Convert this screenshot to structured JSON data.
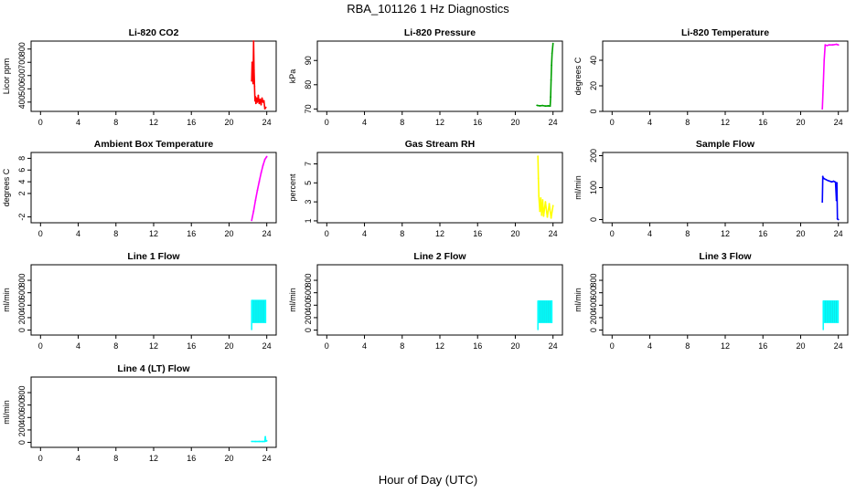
{
  "figure": {
    "title": "RBA_101126  1 Hz Diagnostics",
    "xlabel": "Hour of Day (UTC)"
  },
  "chart_data": [
    {
      "type": "line",
      "title": "Li-820 CO2",
      "ylabel": "Licor ppm",
      "color": "#ff0000",
      "xlim": [
        -1,
        25
      ],
      "ylim": [
        330,
        860
      ],
      "xticks": [
        0,
        4,
        8,
        12,
        16,
        20,
        24
      ],
      "yticks": [
        400,
        500,
        600,
        700,
        800
      ],
      "x": [
        22.4,
        22.45,
        22.5,
        22.55,
        22.6,
        22.65,
        22.7,
        22.75,
        22.8,
        22.85,
        22.9,
        23.0,
        23.1,
        23.2,
        23.3,
        23.4,
        23.5,
        23.6,
        23.7,
        23.8,
        23.9
      ],
      "y": [
        560,
        700,
        620,
        540,
        860,
        640,
        520,
        410,
        440,
        390,
        430,
        400,
        450,
        390,
        420,
        380,
        430,
        400,
        410,
        350,
        360
      ]
    },
    {
      "type": "line",
      "title": "Li-820 Pressure",
      "ylabel": "kPa",
      "color": "#00a000",
      "xlim": [
        -1,
        25
      ],
      "ylim": [
        69,
        98
      ],
      "xticks": [
        0,
        4,
        8,
        12,
        16,
        20,
        24
      ],
      "yticks": [
        70,
        80,
        90
      ],
      "x": [
        22.3,
        22.6,
        22.9,
        23.2,
        23.5,
        23.7,
        23.75,
        23.8,
        23.85,
        23.9,
        24.0
      ],
      "y": [
        71.5,
        71.3,
        71.4,
        71.2,
        71.3,
        71.2,
        75,
        82,
        88,
        93,
        97
      ]
    },
    {
      "type": "line",
      "title": "Li-820 Temperature",
      "ylabel": "degrees C",
      "color": "#ff00ff",
      "xlim": [
        -1,
        25
      ],
      "ylim": [
        0,
        55
      ],
      "xticks": [
        0,
        4,
        8,
        12,
        16,
        20,
        24
      ],
      "yticks": [
        0,
        20,
        40
      ],
      "x": [
        22.3,
        22.4,
        22.5,
        22.6,
        22.8,
        23.0,
        23.4,
        23.8,
        24.0
      ],
      "y": [
        2,
        20,
        40,
        52,
        51.5,
        52,
        52,
        52.5,
        52
      ]
    },
    {
      "type": "line",
      "title": "Ambient Box Temperature",
      "ylabel": "degrees C",
      "color": "#ff00ff",
      "xlim": [
        -1,
        25
      ],
      "ylim": [
        -3,
        9
      ],
      "xticks": [
        0,
        4,
        8,
        12,
        16,
        20,
        24
      ],
      "yticks": [
        -2,
        2,
        4,
        6,
        8
      ],
      "x": [
        22.4,
        22.6,
        22.8,
        23.0,
        23.2,
        23.4,
        23.6,
        23.8,
        24.0
      ],
      "y": [
        -2.6,
        -1.0,
        0.8,
        2.5,
        4.0,
        5.5,
        6.8,
        7.8,
        8.3
      ]
    },
    {
      "type": "line",
      "title": "Gas Stream RH",
      "ylabel": "percent",
      "color": "#ffff00",
      "xlim": [
        -1,
        25
      ],
      "ylim": [
        0.8,
        8.2
      ],
      "xticks": [
        0,
        4,
        8,
        12,
        16,
        20,
        24
      ],
      "yticks": [
        1,
        3,
        5,
        7
      ],
      "x": [
        22.4,
        22.45,
        22.5,
        22.6,
        22.7,
        22.8,
        22.9,
        23.0,
        23.2,
        23.4,
        23.6,
        23.8,
        24.0
      ],
      "y": [
        7.8,
        5.5,
        3.6,
        2.0,
        3.4,
        1.6,
        3.2,
        1.5,
        3.0,
        1.4,
        2.8,
        1.3,
        2.6
      ]
    },
    {
      "type": "line",
      "title": "Sample Flow",
      "ylabel": "ml/min",
      "color": "#0000ff",
      "xlim": [
        -1,
        25
      ],
      "ylim": [
        -10,
        210
      ],
      "xticks": [
        0,
        4,
        8,
        12,
        16,
        20,
        24
      ],
      "yticks": [
        0,
        100,
        200
      ],
      "x": [
        22.3,
        22.35,
        22.4,
        22.5,
        22.7,
        22.9,
        23.1,
        23.3,
        23.5,
        23.7,
        23.8,
        23.85,
        23.9,
        24.0
      ],
      "y": [
        55,
        135,
        130,
        128,
        125,
        122,
        120,
        118,
        120,
        117,
        60,
        115,
        2,
        0
      ]
    },
    {
      "type": "area",
      "title": "Line 1 Flow",
      "ylabel": "ml/min",
      "color": "#00ffff",
      "xlim": [
        -1,
        25
      ],
      "ylim": [
        -80,
        1050
      ],
      "xticks": [
        0,
        4,
        8,
        12,
        16,
        20,
        24
      ],
      "yticks": [
        0,
        200,
        400,
        600,
        800
      ],
      "x": [
        22.4,
        23.9
      ],
      "y_low": 120,
      "y_high": 480
    },
    {
      "type": "area",
      "title": "Line 2 Flow",
      "ylabel": "ml/min",
      "color": "#00ffff",
      "xlim": [
        -1,
        25
      ],
      "ylim": [
        -80,
        1050
      ],
      "xticks": [
        0,
        4,
        8,
        12,
        16,
        20,
        24
      ],
      "yticks": [
        0,
        200,
        400,
        600,
        800
      ],
      "x": [
        22.4,
        23.9
      ],
      "y_low": 120,
      "y_high": 470
    },
    {
      "type": "area",
      "title": "Line 3 Flow",
      "ylabel": "ml/min",
      "color": "#00ffff",
      "xlim": [
        -1,
        25
      ],
      "ylim": [
        -80,
        1050
      ],
      "xticks": [
        0,
        4,
        8,
        12,
        16,
        20,
        24
      ],
      "yticks": [
        0,
        200,
        400,
        600,
        800
      ],
      "x": [
        22.4,
        24.0
      ],
      "y_low": 120,
      "y_high": 470
    },
    {
      "type": "line",
      "title": "Line 4 (LT) Flow",
      "ylabel": "ml/min",
      "color": "#00ffff",
      "xlim": [
        -1,
        25
      ],
      "ylim": [
        -80,
        1050
      ],
      "xticks": [
        0,
        4,
        8,
        12,
        16,
        20,
        24
      ],
      "yticks": [
        0,
        200,
        400,
        600,
        800
      ],
      "x": [
        22.4,
        22.8,
        23.2,
        23.6,
        23.8,
        23.85,
        23.9,
        24.0
      ],
      "y": [
        15,
        14,
        15,
        14,
        15,
        90,
        20,
        25
      ]
    }
  ]
}
